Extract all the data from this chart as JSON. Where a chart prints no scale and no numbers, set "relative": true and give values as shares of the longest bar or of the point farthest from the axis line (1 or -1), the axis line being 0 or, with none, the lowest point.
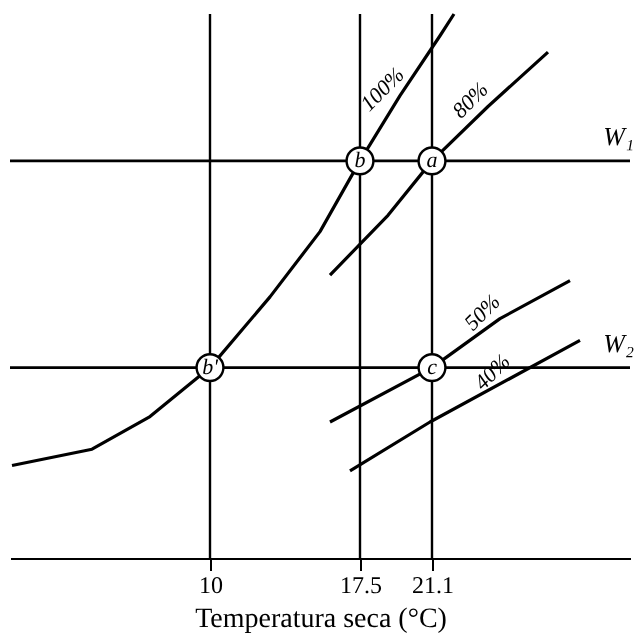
{
  "chart_data": {
    "type": "line",
    "relative": true,
    "xlabel": "Temperatura seca  (°C)",
    "xlim": [
      0,
      31
    ],
    "xticks": [
      10,
      17.5,
      21.1
    ],
    "grid": false,
    "marker": "none",
    "line_style": "solid",
    "series": [
      {
        "name": "100%",
        "color": "#000000",
        "x": [
          0.1,
          4.1,
          7.0,
          10,
          13,
          15.5,
          17.5,
          19.5,
          21.5,
          22.2
        ],
        "values": [
          0.17,
          0.2,
          0.26,
          0.35,
          0.48,
          0.6,
          0.73,
          0.85,
          0.96,
          1.0
        ]
      },
      {
        "name": "80%",
        "color": "#000000",
        "x": [
          16.0,
          18.9,
          21.1,
          23.9,
          26.9
        ],
        "values": [
          0.52,
          0.63,
          0.73,
          0.83,
          0.93
        ]
      },
      {
        "name": "50%",
        "color": "#000000",
        "x": [
          16.0,
          21.1,
          24.5,
          28
        ],
        "values": [
          0.25,
          0.35,
          0.44,
          0.51
        ]
      },
      {
        "name": "40%",
        "color": "#000000",
        "x": [
          17,
          21,
          25,
          28.5
        ],
        "values": [
          0.16,
          0.25,
          0.33,
          0.4
        ]
      }
    ],
    "ref_lines": [
      {
        "axis": "y",
        "value": 0.73,
        "label": "W₁"
      },
      {
        "axis": "y",
        "value": 0.35,
        "label": "W₂"
      },
      {
        "axis": "x",
        "value": 10,
        "label": null
      },
      {
        "axis": "x",
        "value": 17.5,
        "label": null
      },
      {
        "axis": "x",
        "value": 21.1,
        "label": null
      }
    ],
    "annotations": [
      {
        "text": "a",
        "x": 21.1,
        "y": 0.73
      },
      {
        "text": "b",
        "x": 17.5,
        "y": 0.73
      },
      {
        "text": "b'",
        "x": 10,
        "y": 0.35
      },
      {
        "text": "c",
        "x": 21.1,
        "y": 0.35
      }
    ]
  }
}
